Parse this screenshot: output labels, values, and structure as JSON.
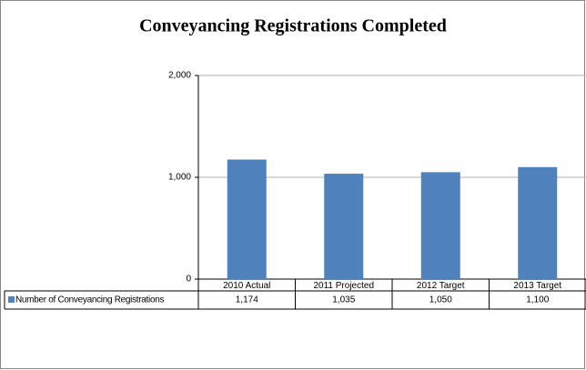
{
  "chart_data": {
    "type": "bar",
    "title": "Conveyancing Registrations Completed",
    "categories": [
      "2010 Actual",
      "2011 Projected",
      "2012 Target",
      "2013 Target"
    ],
    "series": [
      {
        "name": "Number of Conveyancing Registrations",
        "color": "#4f81bd",
        "values": [
          1174,
          1035,
          1050,
          1100
        ],
        "value_labels": [
          "1,174",
          "1,035",
          "1,050",
          "1,100"
        ]
      }
    ],
    "ylim": [
      0,
      2000
    ],
    "yticks": [
      0,
      {
        "value": 1000,
        "label": "1,000"
      },
      {
        "value": 2000,
        "label": "2,000"
      }
    ],
    "grid": true
  }
}
